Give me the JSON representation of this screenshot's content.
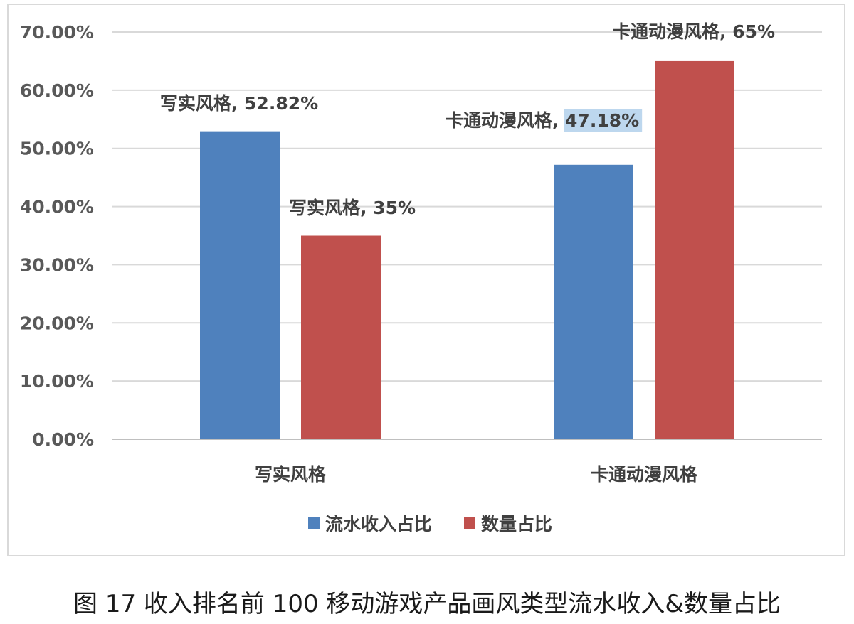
{
  "chart_data": {
    "type": "bar",
    "categories": [
      "写实风格",
      "卡通动漫风格"
    ],
    "series": [
      {
        "name": "流水收入占比",
        "values": [
          52.82,
          47.18
        ],
        "color": "#4f81bd",
        "labels": [
          "写实风格, 52.82%",
          "卡通动漫风格, 47.18%"
        ]
      },
      {
        "name": "数量占比",
        "values": [
          35,
          65
        ],
        "color": "#c0504d",
        "labels": [
          "写实风格, 35%",
          "卡通动漫风格, 65%"
        ]
      }
    ],
    "yticks": [
      "0.00%",
      "10.00%",
      "20.00%",
      "30.00%",
      "40.00%",
      "50.00%",
      "60.00%",
      "70.00%"
    ],
    "ylim": [
      0,
      70
    ],
    "grid": true,
    "legend_position": "bottom",
    "highlight_color": "#bdd7ee"
  },
  "caption": "图 17  收入排名前 100 移动游戏产品画风类型流水收入&数量占比"
}
